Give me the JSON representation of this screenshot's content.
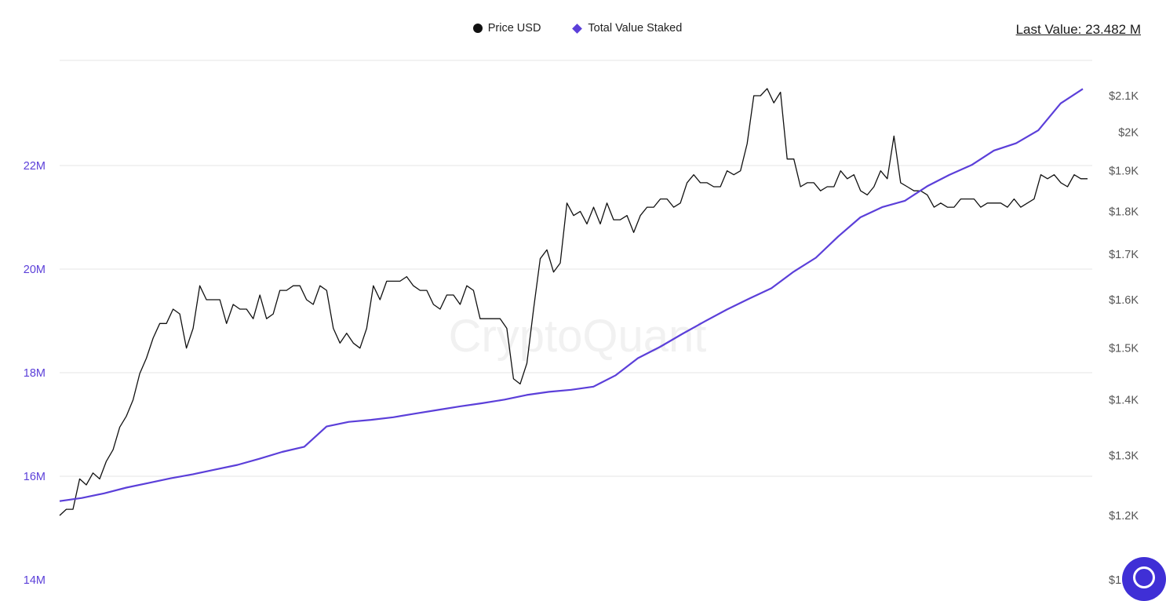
{
  "legend": {
    "items": [
      {
        "label": "Price USD",
        "color": "#111111",
        "shape": "dot"
      },
      {
        "label": "Total Value Staked",
        "color": "#5b3fd9",
        "shape": "diamond"
      }
    ]
  },
  "last_value": "Last Value: 23.482 M",
  "watermark": "CryptoQuant",
  "colors": {
    "price_line": "#111111",
    "staked_line": "#5b3fd9",
    "left_axis_text": "#5b3fd9",
    "right_axis_text": "#555555",
    "grid": "#e6e6e6",
    "help_button": "#3f2fd6"
  },
  "chart_data": {
    "type": "line",
    "left_axis": {
      "ticks": [
        14,
        16,
        18,
        20,
        22
      ],
      "tick_labels": [
        "14M",
        "16M",
        "18M",
        "20M",
        "22M"
      ],
      "range": [
        14,
        24
      ]
    },
    "right_axis": {
      "ticks": [
        1.2,
        1.3,
        1.4,
        1.5,
        1.6,
        1.7,
        1.8,
        1.9,
        2.0,
        2.1
      ],
      "tick_labels": [
        "$1.2K",
        "$1.3K",
        "$1.4K",
        "$1.5K",
        "$1.6K",
        "$1.7K",
        "$1.8K",
        "$1.9K",
        "$2K",
        "$2.1K"
      ],
      "scale": "log"
    },
    "series": [
      {
        "name": "Price USD",
        "axis": "right",
        "values": [
          1.2,
          1.21,
          1.21,
          1.26,
          1.25,
          1.27,
          1.26,
          1.29,
          1.31,
          1.35,
          1.37,
          1.4,
          1.45,
          1.48,
          1.52,
          1.55,
          1.55,
          1.58,
          1.57,
          1.5,
          1.54,
          1.63,
          1.6,
          1.6,
          1.6,
          1.55,
          1.59,
          1.58,
          1.58,
          1.56,
          1.61,
          1.56,
          1.57,
          1.62,
          1.62,
          1.63,
          1.63,
          1.6,
          1.59,
          1.63,
          1.62,
          1.54,
          1.51,
          1.53,
          1.51,
          1.5,
          1.54,
          1.63,
          1.6,
          1.64,
          1.64,
          1.64,
          1.65,
          1.63,
          1.62,
          1.62,
          1.59,
          1.58,
          1.61,
          1.61,
          1.59,
          1.63,
          1.62,
          1.56,
          1.56,
          1.56,
          1.56,
          1.54,
          1.44,
          1.43,
          1.47,
          1.58,
          1.69,
          1.71,
          1.66,
          1.68,
          1.82,
          1.79,
          1.8,
          1.77,
          1.81,
          1.77,
          1.82,
          1.78,
          1.78,
          1.79,
          1.75,
          1.79,
          1.81,
          1.81,
          1.83,
          1.83,
          1.81,
          1.82,
          1.87,
          1.89,
          1.87,
          1.87,
          1.86,
          1.86,
          1.9,
          1.89,
          1.9,
          1.97,
          2.1,
          2.1,
          2.12,
          2.08,
          2.11,
          1.93,
          1.93,
          1.86,
          1.87,
          1.87,
          1.85,
          1.86,
          1.86,
          1.9,
          1.88,
          1.89,
          1.85,
          1.84,
          1.86,
          1.9,
          1.88,
          1.99,
          1.87,
          1.86,
          1.85,
          1.85,
          1.84,
          1.81,
          1.82,
          1.81,
          1.81,
          1.83,
          1.83,
          1.83,
          1.81,
          1.82,
          1.82,
          1.82,
          1.81,
          1.83,
          1.81,
          1.82,
          1.83,
          1.89,
          1.88,
          1.89,
          1.87,
          1.86,
          1.89,
          1.88,
          1.88
        ]
      },
      {
        "name": "Total Value Staked",
        "axis": "left",
        "x_start": 0,
        "x_end": 1,
        "values": [
          15.52,
          15.58,
          15.67,
          15.78,
          15.87,
          15.96,
          16.04,
          16.13,
          16.22,
          16.34,
          16.47,
          16.57,
          16.96,
          17.05,
          17.09,
          17.14,
          17.21,
          17.28,
          17.35,
          17.41,
          17.48,
          17.57,
          17.63,
          17.67,
          17.73,
          17.95,
          18.28,
          18.5,
          18.75,
          18.99,
          19.22,
          19.43,
          19.63,
          19.95,
          20.22,
          20.63,
          21.0,
          21.2,
          21.32,
          21.6,
          21.82,
          22.01,
          22.29,
          22.43,
          22.68,
          23.2,
          23.48
        ]
      }
    ]
  }
}
